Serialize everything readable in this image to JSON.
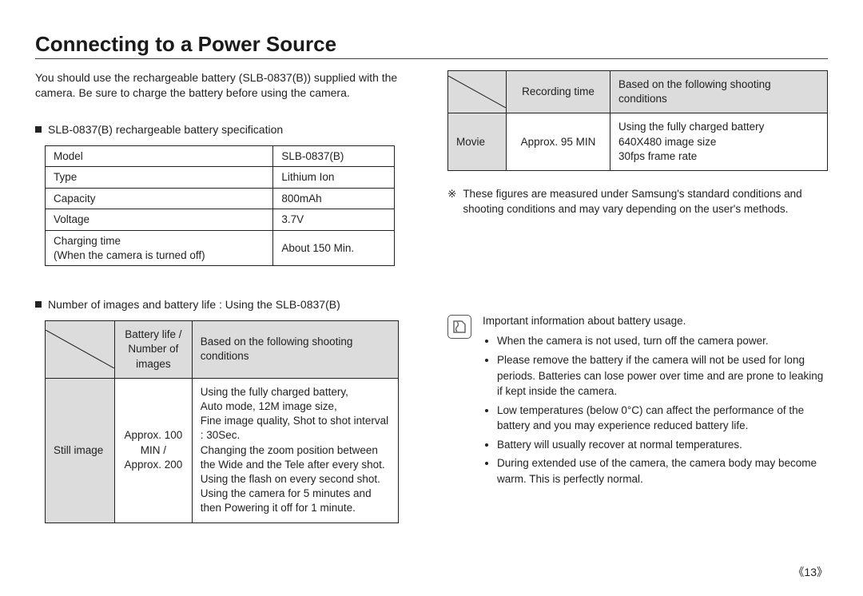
{
  "title": "Connecting to a Power Source",
  "intro": "You should use the rechargeable battery (SLB-0837(B)) supplied with the camera. Be sure to charge the battery before using the camera.",
  "spec_heading": "SLB-0837(B) rechargeable battery specification",
  "spec_table": {
    "rows": [
      {
        "label": "Model",
        "value": "SLB-0837(B)"
      },
      {
        "label": "Type",
        "value": "Lithium Ion"
      },
      {
        "label": "Capacity",
        "value": "800mAh"
      },
      {
        "label": "Voltage",
        "value": "3.7V"
      },
      {
        "label": "Charging time\n(When the camera is turned off)",
        "value": "About 150 Min."
      }
    ]
  },
  "usage_heading": "Number of images and battery life : Using the SLB-0837(B)",
  "usage_table_headers": {
    "battery_life": "Battery life /\nNumber of images",
    "conditions": "Based on the following shooting conditions"
  },
  "usage_still": {
    "mode": "Still image",
    "value": "Approx. 100 MIN /\nApprox. 200",
    "conditions": [
      "Using the fully charged battery,",
      "Auto mode, 12M image size,",
      "Fine image quality, Shot to shot interval : 30Sec.",
      "Changing the zoom position between the Wide and the Tele after every shot.",
      "Using the flash on every second shot.",
      "Using the camera for 5 minutes and then Powering it off for 1 minute."
    ]
  },
  "movie_headers": {
    "recording_time": "Recording time",
    "conditions": "Based on the following shooting conditions"
  },
  "usage_movie": {
    "mode": "Movie",
    "value": "Approx. 95 MIN",
    "conditions": [
      "Using the fully charged battery",
      "640X480 image size",
      "30fps frame rate"
    ]
  },
  "footnote_mark": "※",
  "footnote": "These figures are measured under Samsung's standard conditions and shooting conditions and may vary depending on the user's methods.",
  "info": {
    "heading": "Important information about battery usage.",
    "items": [
      "When the camera is not used, turn off the camera power.",
      "Please remove the battery if the camera will not be used for long periods. Batteries can lose power over time and are prone to leaking if kept inside the camera.",
      "Low temperatures (below 0°C) can affect the performance of the battery and you may experience reduced battery life.",
      "Battery will usually recover at normal temperatures.",
      "During extended use of the camera, the camera body may become warm. This is perfectly normal."
    ]
  },
  "page_number": "13",
  "colors": {
    "text": "#222222",
    "border": "#222222",
    "shade": "#dcdcdc",
    "background": "#ffffff"
  }
}
